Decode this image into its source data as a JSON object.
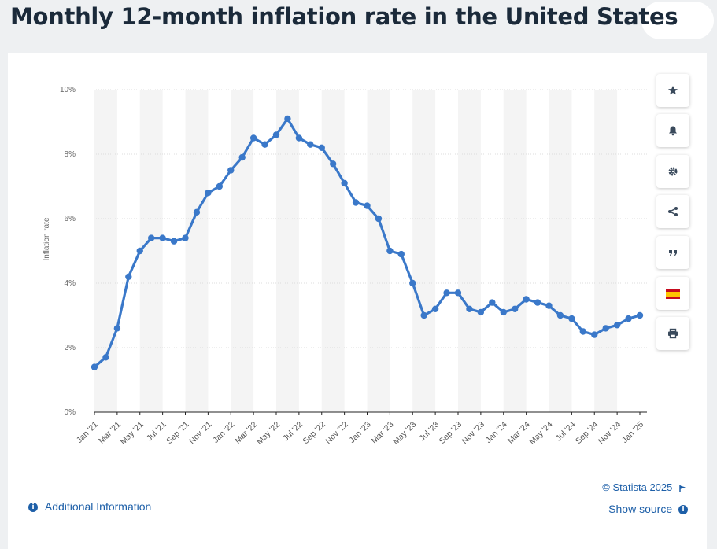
{
  "page": {
    "title": "Monthly 12-month inflation rate in the United States"
  },
  "toolbar": [
    {
      "name": "favorite-button",
      "icon": "star-icon"
    },
    {
      "name": "notification-button",
      "icon": "bell-icon"
    },
    {
      "name": "settings-button",
      "icon": "gear-icon"
    },
    {
      "name": "share-button",
      "icon": "share-icon"
    },
    {
      "name": "cite-button",
      "icon": "quote-icon"
    },
    {
      "name": "language-button",
      "icon": "spain-flag-icon"
    },
    {
      "name": "print-button",
      "icon": "printer-icon"
    }
  ],
  "footer": {
    "additional_info": "Additional Information",
    "credit": "© Statista 2025",
    "show_source": "Show source"
  },
  "colors": {
    "line": "#3a78c9",
    "link": "#1d5fa8",
    "band": "#f4f4f4",
    "flag_red": "#c60b1e",
    "flag_yellow": "#ffc400"
  },
  "chart_data": {
    "type": "line",
    "ylabel": "Inflation rate",
    "xlabel": "",
    "ylim": [
      0,
      10
    ],
    "yticks": [
      "0%",
      "2%",
      "4%",
      "6%",
      "8%",
      "10%"
    ],
    "grid": true,
    "x": [
      "Jan '21",
      "Feb '21",
      "Mar '21",
      "Apr '21",
      "May '21",
      "Jun '21",
      "Jul '21",
      "Aug '21",
      "Sep '21",
      "Oct '21",
      "Nov '21",
      "Dec '21",
      "Jan '22",
      "Feb '22",
      "Mar '22",
      "Apr '22",
      "May '22",
      "Jun '22",
      "Jul '22",
      "Aug '22",
      "Sep '22",
      "Oct '22",
      "Nov '22",
      "Dec '22",
      "Jan '23",
      "Feb '23",
      "Mar '23",
      "Apr '23",
      "May '23",
      "Jun '23",
      "Jul '23",
      "Aug '23",
      "Sep '23",
      "Oct '23",
      "Nov '23",
      "Dec '23",
      "Jan '24",
      "Feb '24",
      "Mar '24",
      "Apr '24",
      "May '24",
      "Jun '24",
      "Jul '24",
      "Aug '24",
      "Sep '24",
      "Oct '24",
      "Nov '24",
      "Dec '24",
      "Jan '25"
    ],
    "xtick_labels": [
      "Jan '21",
      "Mar '21",
      "May '21",
      "Jul '21",
      "Sep '21",
      "Nov '21",
      "Jan '22",
      "Mar '22",
      "May '22",
      "Jul '22",
      "Sep '22",
      "Nov '22",
      "Jan '23",
      "Mar '23",
      "May '23",
      "Jul '23",
      "Sep '23",
      "Nov '23",
      "Jan '24",
      "Mar '24",
      "May '24",
      "Jul '24",
      "Sep '24",
      "Nov '24",
      "Jan '25"
    ],
    "values": [
      1.4,
      1.7,
      2.6,
      4.2,
      5.0,
      5.4,
      5.4,
      5.3,
      5.4,
      6.2,
      6.8,
      7.0,
      7.5,
      7.9,
      8.5,
      8.3,
      8.6,
      9.1,
      8.5,
      8.3,
      8.2,
      7.7,
      7.1,
      6.5,
      6.4,
      6.0,
      5.0,
      4.9,
      4.0,
      3.0,
      3.2,
      3.7,
      3.7,
      3.2,
      3.1,
      3.4,
      3.1,
      3.2,
      3.5,
      3.4,
      3.3,
      3.0,
      2.9,
      2.5,
      2.4,
      2.6,
      2.7,
      2.9,
      3.0
    ]
  }
}
